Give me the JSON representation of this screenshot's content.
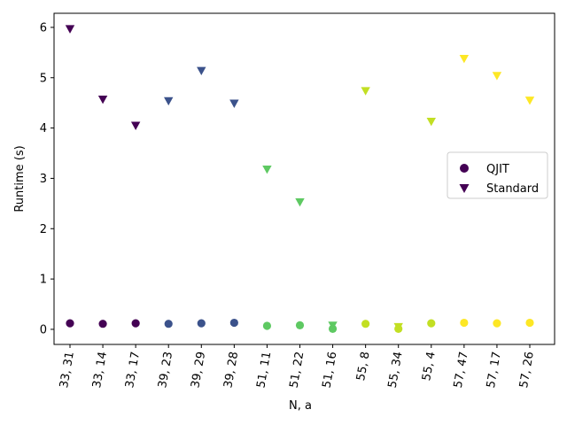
{
  "chart_data": {
    "type": "scatter",
    "title": "",
    "xlabel": "N, a",
    "ylabel": "Runtime (s)",
    "categories": [
      "33, 31",
      "33, 14",
      "33, 17",
      "39, 23",
      "39, 29",
      "39, 28",
      "51, 11",
      "51, 22",
      "51, 16",
      "55, 8",
      "55, 34",
      "55, 4",
      "57, 47",
      "57, 17",
      "57, 26"
    ],
    "category_colors": [
      "#440154",
      "#440154",
      "#440154",
      "#3b528b",
      "#3b528b",
      "#3b528b",
      "#5ec962",
      "#5ec962",
      "#5ec962",
      "#c2df23",
      "#c2df23",
      "#c2df23",
      "#fde725",
      "#fde725",
      "#fde725"
    ],
    "ylim": [
      -0.3,
      6.28
    ],
    "yticks": [
      0,
      1,
      2,
      3,
      4,
      5,
      6
    ],
    "legend_position": "center-right",
    "grid": false,
    "series": [
      {
        "name": "QJIT",
        "marker": "circle",
        "values": [
          0.12,
          0.11,
          0.12,
          0.11,
          0.12,
          0.13,
          0.07,
          0.08,
          0.01,
          0.11,
          0.01,
          0.12,
          0.13,
          0.12,
          0.13
        ]
      },
      {
        "name": "Standard",
        "marker": "triangle-down",
        "values": [
          5.97,
          4.57,
          4.05,
          4.54,
          5.14,
          4.49,
          3.18,
          2.53,
          0.08,
          4.74,
          0.05,
          4.13,
          5.38,
          5.04,
          4.55
        ]
      }
    ]
  }
}
